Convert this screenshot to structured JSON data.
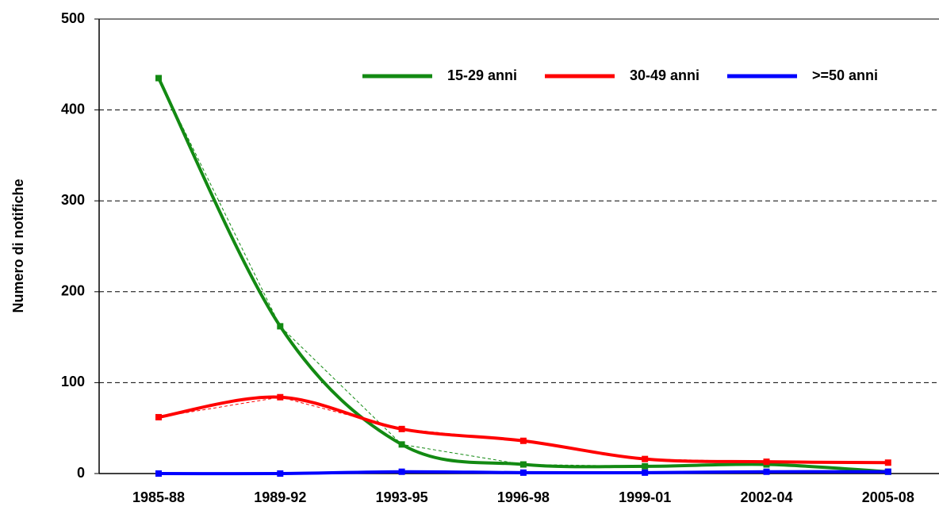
{
  "chart_data": {
    "type": "line",
    "y_label": "Numero di notifiche",
    "categories": [
      "1985-88",
      "1989-92",
      "1993-95",
      "1996-98",
      "1999-01",
      "2002-04",
      "2005-08"
    ],
    "series": [
      {
        "name": "15-29 anni",
        "color": "#138a13",
        "values": [
          435,
          162,
          32,
          10,
          8,
          10,
          2
        ]
      },
      {
        "name": "30-49 anni",
        "color": "#ff0000",
        "values": [
          62,
          84,
          49,
          36,
          16,
          13,
          12
        ]
      },
      {
        "name": ">=50 anni",
        "color": "#0000ff",
        "values": [
          0,
          0,
          2,
          1,
          1,
          2,
          2
        ]
      }
    ],
    "ylim": [
      0,
      500
    ],
    "yticks": [
      0,
      100,
      200,
      300,
      400,
      500
    ],
    "grid": true,
    "legend": "top"
  }
}
